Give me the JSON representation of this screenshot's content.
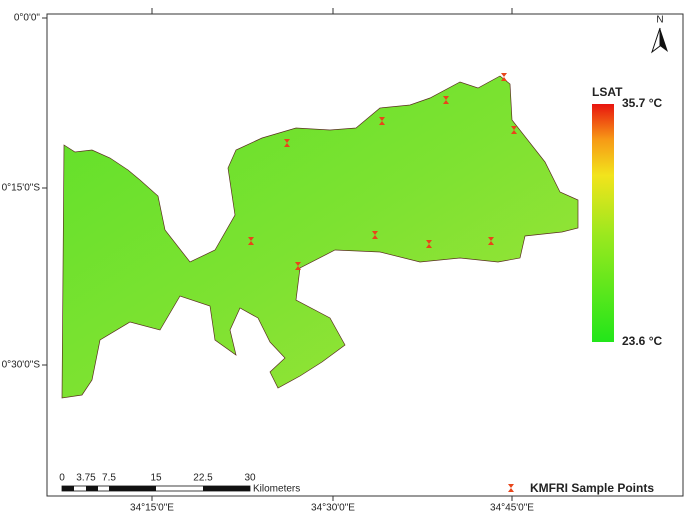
{
  "map": {
    "lat_labels": [
      "0°0'0\"",
      "0°15'0\"S",
      "0°30'0\"S"
    ],
    "lon_labels": [
      "34°15'0\"E",
      "34°30'0\"E",
      "34°45'0\"E"
    ],
    "north": "N",
    "legend": {
      "title": "LSAT",
      "max": "35.7 °C",
      "min": "23.6 °C"
    },
    "scale_bar": {
      "labels": [
        "0",
        "3.75",
        "7.5",
        "15",
        "22.5",
        "30"
      ],
      "unit": "Kilometers"
    },
    "points_legend": "KMFRI Sample Points"
  }
}
